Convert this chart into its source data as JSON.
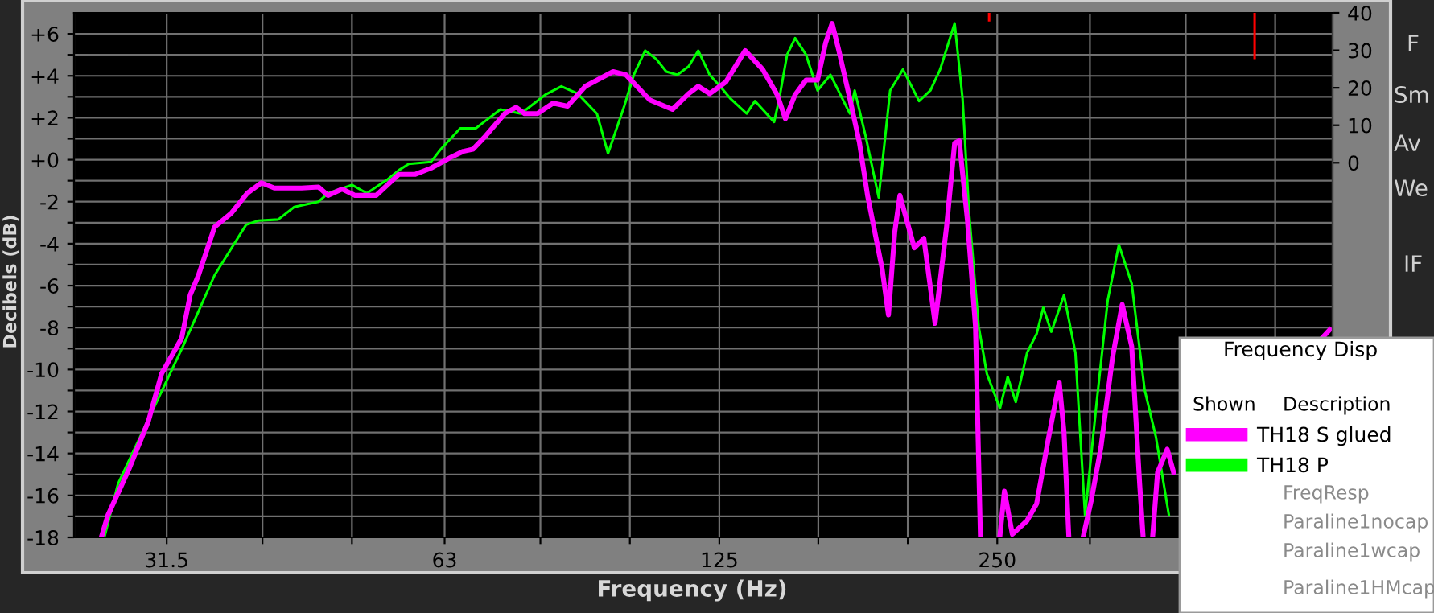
{
  "chart_data": {
    "type": "line",
    "xlabel": "Frequency (Hz)",
    "ylabel": "Decibels (dB)",
    "log": "x",
    "grid": true,
    "legend": "bottom right",
    "xlim": [
      25,
      577
    ],
    "xticks": [
      31.5,
      {
        "value": 40,
        "label": null
      },
      {
        "value": 50,
        "label": null
      },
      63,
      {
        "value": 80,
        "label": null
      },
      {
        "value": 100,
        "label": null
      },
      125,
      {
        "value": 160,
        "label": null
      },
      {
        "value": 200,
        "label": null
      },
      250,
      {
        "value": 315,
        "label": null
      },
      {
        "value": 400,
        "label": null
      },
      {
        "value": 500,
        "label": null
      }
    ],
    "ylim": [
      -18,
      7
    ],
    "yticks": [
      {
        "value": 6,
        "label": "+6"
      },
      {
        "value": 5,
        "label": null
      },
      {
        "value": 4,
        "label": "+4"
      },
      {
        "value": 3,
        "label": null
      },
      {
        "value": 2,
        "label": "+2"
      },
      {
        "value": 1,
        "label": null
      },
      {
        "value": 0,
        "label": "+0"
      },
      {
        "value": -1,
        "label": null
      },
      -2,
      {
        "value": -3,
        "label": null
      },
      -4,
      {
        "value": -5,
        "label": null
      },
      -6,
      {
        "value": -7,
        "label": null
      },
      -8,
      {
        "value": -9,
        "label": null
      },
      -10,
      {
        "value": -11,
        "label": null
      },
      -12,
      {
        "value": -13,
        "label": null
      },
      -14,
      {
        "value": -15,
        "label": null
      },
      -16,
      {
        "value": -17,
        "label": null
      },
      -18
    ],
    "y2lim": [
      -100,
      40
    ],
    "y2ticks": [
      0,
      10,
      20,
      30,
      40
    ],
    "series": [
      {
        "name": "TH18 S glued",
        "color": "#ff00ff",
        "x": [
          26.8,
          27.2,
          28.7,
          30.1,
          31.1,
          32.7,
          33.4,
          34.1,
          35.5,
          37.0,
          38.5,
          39.9,
          41.2,
          44.1,
          46.0,
          47.1,
          48.8,
          50.4,
          53.1,
          56.2,
          58.5,
          60.9,
          64.2,
          66.0,
          67.6,
          69.5,
          73.2,
          75.3,
          76.9,
          79.4,
          82.6,
          85.6,
          89.5,
          95.9,
          99.0,
          105.1,
          111.2,
          115.8,
          118.6,
          122.0,
          127.0,
          133.3,
          139.3,
          144.4,
          147.4,
          151.0,
          155.2,
          159.7,
          162.9,
          165.6,
          168.2,
          173.1,
          177.3,
          180.9,
          187.6,
          190.6,
          193.6,
          196.1,
          203.3,
          208.2,
          214.1,
          220.3,
          224.8,
          227.4,
          232.1,
          236.8,
          239.7,
          245,
          251.7,
          254.5,
          259.6,
          269.3,
          275.8,
          283.7,
          291.8,
          295.3,
          298.8,
          305,
          310,
          316.2,
          323.8,
          333.2,
          341.4,
          349.6,
          356.6,
          359.6,
          364,
          368.4,
          372.9,
          382.0,
          388.1,
          470,
          562,
          573
        ],
        "values": [
          -17.9,
          -16.95,
          -14.7,
          -12.45,
          -10.2,
          -8.5,
          -6.45,
          -5.5,
          -3.2,
          -2.55,
          -1.6,
          -1.1,
          -1.35,
          -1.35,
          -1.3,
          -1.7,
          -1.4,
          -1.7,
          -1.7,
          -0.7,
          -0.7,
          -0.4,
          0.15,
          0.4,
          0.5,
          1.05,
          2.2,
          2.5,
          2.2,
          2.2,
          2.7,
          2.55,
          3.5,
          4.2,
          4.05,
          2.85,
          2.4,
          3.15,
          3.5,
          3.15,
          3.7,
          5.2,
          4.3,
          3.1,
          1.95,
          3.1,
          3.8,
          3.8,
          5.55,
          6.5,
          5.3,
          2.9,
          0.8,
          -1.7,
          -5.2,
          -7.4,
          -3.45,
          -1.7,
          -4.2,
          -3.75,
          -7.8,
          -3.2,
          0.8,
          0.9,
          -2.9,
          -7.95,
          -17.9,
          null,
          -17.9,
          -15.8,
          -17.85,
          -17.2,
          -16.4,
          -13.4,
          -10.6,
          -13.0,
          -17.9,
          null,
          -17.9,
          -16.2,
          -13.7,
          -9.45,
          -6.9,
          -8.9,
          -15.45,
          -17.9,
          null,
          -17.9,
          -14.9,
          -13.8,
          -14.9,
          null,
          -8.5,
          -8.1
        ]
      },
      {
        "name": "TH18 P",
        "color": "#00ff00",
        "x": [
          27.0,
          27.9,
          30.3,
          32.8,
          35.5,
          38.4,
          39.6,
          41.6,
          43.3,
          46.0,
          47.1,
          50.0,
          51.9,
          54.6,
          56.2,
          57.6,
          60.9,
          62.4,
          65.5,
          68.1,
          69.5,
          72.4,
          76.2,
          81.0,
          84.3,
          87.8,
          92.1,
          94.7,
          98.6,
          101.0,
          103.9,
          106.8,
          109.5,
          112.6,
          115.8,
          118.6,
          122.0,
          125.5,
          128.6,
          133.8,
          136.6,
          143.3,
          145.0,
          148.0,
          151.0,
          155.2,
          159.7,
          164.9,
          173.1,
          175.2,
          180.2,
          186.0,
          191.4,
          197.6,
          205.7,
          211.6,
          216.8,
          224.8,
          229.3,
          233.0,
          238.7,
          243.6,
          251.7,
          256.6,
          261.8,
          269.3,
          275.8,
          280.4,
          286.1,
          295.3,
          303.8,
          311.2,
          320.1,
          329.3,
          338.6,
          349.6,
          361.0,
          371.3,
          383.6
        ],
        "values": [
          -17.9,
          -15.45,
          -12.1,
          -8.9,
          -5.5,
          -3.1,
          -2.9,
          -2.85,
          -2.25,
          -2.0,
          -1.6,
          -1.2,
          -1.6,
          -0.95,
          -0.5,
          -0.2,
          -0.1,
          0.5,
          1.5,
          1.5,
          1.8,
          2.4,
          2.2,
          3.1,
          3.5,
          3.15,
          2.2,
          0.3,
          2.55,
          4.05,
          5.2,
          4.8,
          4.2,
          4.05,
          4.45,
          5.2,
          4.05,
          3.45,
          2.9,
          2.2,
          2.8,
          1.8,
          2.8,
          5.0,
          5.8,
          5.0,
          3.3,
          4.05,
          2.2,
          3.3,
          1.05,
          -1.8,
          3.3,
          4.3,
          2.8,
          3.3,
          4.3,
          6.5,
          2.9,
          -2.5,
          -7.95,
          -10.2,
          -11.85,
          -10.35,
          -11.55,
          -9.2,
          -8.3,
          -7.05,
          -8.2,
          -6.45,
          -9.2,
          -16.95,
          -11.7,
          -6.7,
          -4.05,
          -5.9,
          -10.95,
          -13.2,
          -16.95
        ]
      },
      {
        "color": "#ff0000",
        "axis": "y2",
        "x": [
          245,
          245,
          300,
          475,
          475
        ],
        "values": [
          40,
          38,
          null,
          40,
          28
        ]
      }
    ],
    "annotations": [
      "Frequency Disp",
      "Shown",
      "Description",
      "FreqResp",
      "Paraline1nocap",
      "Paraline1wcap",
      "Paraline1HMcap",
      "F",
      "Sm",
      "Av",
      "We",
      "IF"
    ]
  }
}
